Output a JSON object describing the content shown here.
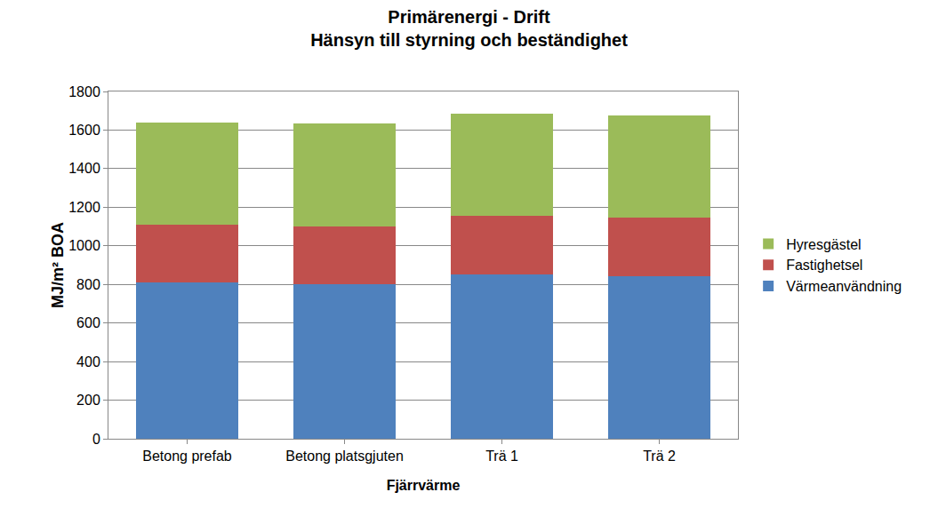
{
  "chart_data": {
    "type": "bar",
    "title": "Primärenergi - Drift\nHänsyn till styrning och beständighet",
    "x_label": "Fjärrvärme",
    "y_label": "MJ/m² BOA",
    "categories": [
      "Betong prefab",
      "Betong platsgjuten",
      "Trä 1",
      "Trä 2"
    ],
    "series": [
      {
        "name": "Värmeanvändning",
        "color": "#4F81BD",
        "values": [
          810,
          800,
          852,
          843
        ]
      },
      {
        "name": "Fastighetsel",
        "color": "#C0504D",
        "values": [
          300,
          300,
          303,
          302
        ]
      },
      {
        "name": "Hyresgästel",
        "color": "#9BBB59",
        "values": [
          530,
          535,
          530,
          530
        ]
      }
    ],
    "stacked": true,
    "ylim": [
      0,
      1800
    ],
    "yticks": [
      0,
      200,
      400,
      600,
      800,
      1000,
      1200,
      1400,
      1600,
      1800
    ],
    "grid": true,
    "legend": "right"
  }
}
